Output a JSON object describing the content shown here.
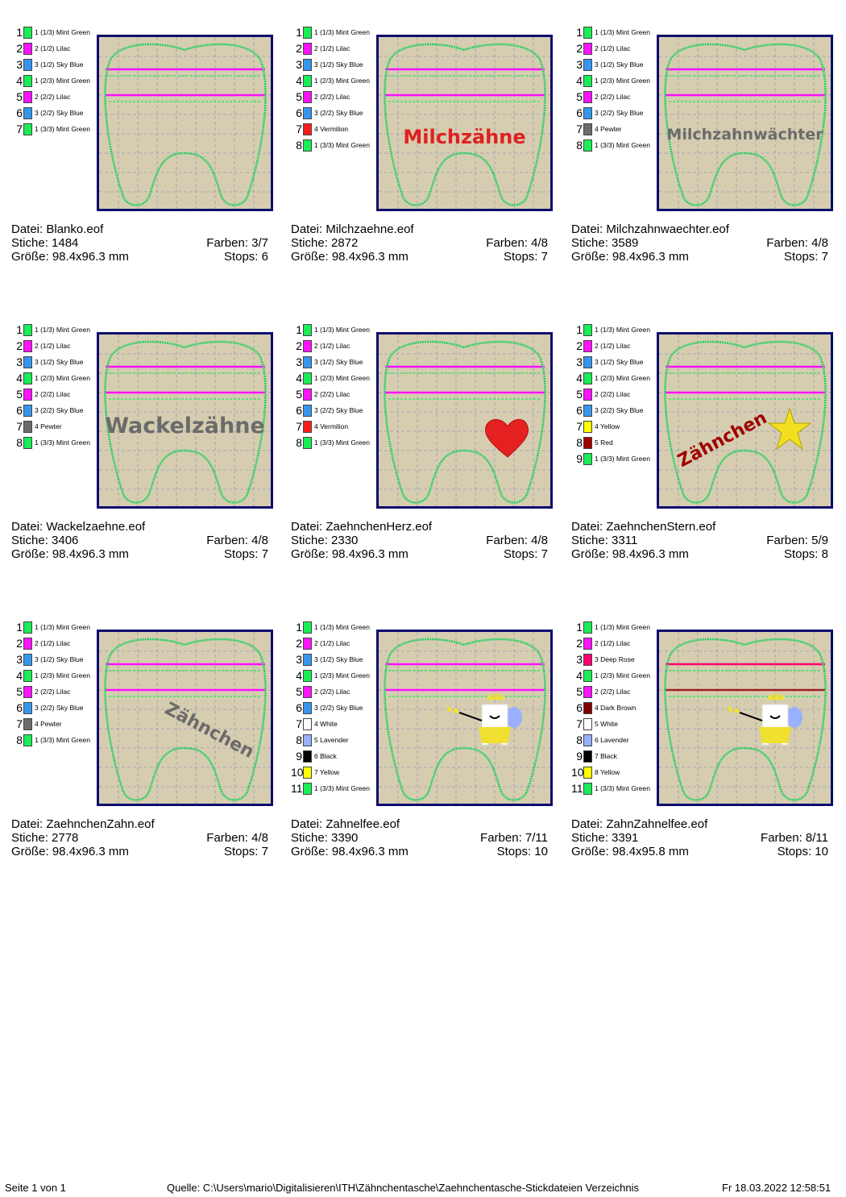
{
  "palette": {
    "Mint Green": "#17ef55",
    "Lilac": "#ff10ff",
    "Sky Blue": "#3596f0",
    "Vermilion": "#ff1a1a",
    "Pewter": "#6b6b6b",
    "Yellow": "#ffff00",
    "Red": "#a00000",
    "White": "#ffffff",
    "Lavender": "#98b0ff",
    "Black": "#000000",
    "Deep Rose": "#ff0070",
    "Dark Brown": "#800000"
  },
  "labels": {
    "file": "Datei:",
    "stitches": "Stiche:",
    "colors": "Farben:",
    "size": "Größe:",
    "stops": "Stops:"
  },
  "designs": [
    {
      "file": "Blanko.eof",
      "stitches": "1484",
      "colors": "3/7",
      "size": "98.4x96.3 mm",
      "stops": "6",
      "design": {
        "type": "none"
      },
      "threads": [
        [
          "1",
          "1 (1/3) Mint Green",
          "Mint Green"
        ],
        [
          "2",
          "2 (1/2) Lilac",
          "Lilac"
        ],
        [
          "3",
          "3 (1/2) Sky Blue",
          "Sky Blue"
        ],
        [
          "4",
          "1 (2/3) Mint Green",
          "Mint Green"
        ],
        [
          "5",
          "2 (2/2) Lilac",
          "Lilac"
        ],
        [
          "6",
          "3 (2/2) Sky Blue",
          "Sky Blue"
        ],
        [
          "7",
          "1 (3/3) Mint Green",
          "Mint Green"
        ]
      ]
    },
    {
      "file": "Milchzaehne.eof",
      "stitches": "2872",
      "colors": "4/8",
      "size": "98.4x96.3 mm",
      "stops": "7",
      "design": {
        "type": "text",
        "text": "Milchzähne",
        "color": "#e02020"
      },
      "threads": [
        [
          "1",
          "1 (1/3) Mint Green",
          "Mint Green"
        ],
        [
          "2",
          "2 (1/2) Lilac",
          "Lilac"
        ],
        [
          "3",
          "3 (1/2) Sky Blue",
          "Sky Blue"
        ],
        [
          "4",
          "1 (2/3) Mint Green",
          "Mint Green"
        ],
        [
          "5",
          "2 (2/2) Lilac",
          "Lilac"
        ],
        [
          "6",
          "3 (2/2) Sky Blue",
          "Sky Blue"
        ],
        [
          "7",
          "4 Vermilion",
          "Vermilion"
        ],
        [
          "8",
          "1 (3/3) Mint Green",
          "Mint Green"
        ]
      ]
    },
    {
      "file": "Milchzahnwaechter.eof",
      "stitches": "3589",
      "colors": "4/8",
      "size": "98.4x96.3 mm",
      "stops": "7",
      "design": {
        "type": "text",
        "text": "Milchzahnwächter",
        "color": "#6b6b6b"
      },
      "threads": [
        [
          "1",
          "1 (1/3) Mint Green",
          "Mint Green"
        ],
        [
          "2",
          "2 (1/2) Lilac",
          "Lilac"
        ],
        [
          "3",
          "3 (1/2) Sky Blue",
          "Sky Blue"
        ],
        [
          "4",
          "1 (2/3) Mint Green",
          "Mint Green"
        ],
        [
          "5",
          "2 (2/2) Lilac",
          "Lilac"
        ],
        [
          "6",
          "3 (2/2) Sky Blue",
          "Sky Blue"
        ],
        [
          "7",
          "4 Pewter",
          "Pewter"
        ],
        [
          "8",
          "1 (3/3) Mint Green",
          "Mint Green"
        ]
      ]
    },
    {
      "file": "Wackelzaehne.eof",
      "stitches": "3406",
      "colors": "4/8",
      "size": "98.4x96.3 mm",
      "stops": "7",
      "design": {
        "type": "text",
        "text": "Wackelzähne",
        "color": "#6b6b6b"
      },
      "threads": [
        [
          "1",
          "1 (1/3) Mint Green",
          "Mint Green"
        ],
        [
          "2",
          "2 (1/2) Lilac",
          "Lilac"
        ],
        [
          "3",
          "3 (1/2) Sky Blue",
          "Sky Blue"
        ],
        [
          "4",
          "1 (2/3) Mint Green",
          "Mint Green"
        ],
        [
          "5",
          "2 (2/2) Lilac",
          "Lilac"
        ],
        [
          "6",
          "3 (2/2) Sky Blue",
          "Sky Blue"
        ],
        [
          "7",
          "4 Pewter",
          "Pewter"
        ],
        [
          "8",
          "1 (3/3) Mint Green",
          "Mint Green"
        ]
      ]
    },
    {
      "file": "ZaehnchenHerz.eof",
      "stitches": "2330",
      "colors": "4/8",
      "size": "98.4x96.3 mm",
      "stops": "7",
      "design": {
        "type": "heart"
      },
      "threads": [
        [
          "1",
          "1 (1/3) Mint Green",
          "Mint Green"
        ],
        [
          "2",
          "2 (1/2) Lilac",
          "Lilac"
        ],
        [
          "3",
          "3 (1/2) Sky Blue",
          "Sky Blue"
        ],
        [
          "4",
          "1 (2/3) Mint Green",
          "Mint Green"
        ],
        [
          "5",
          "2 (2/2) Lilac",
          "Lilac"
        ],
        [
          "6",
          "3 (2/2) Sky Blue",
          "Sky Blue"
        ],
        [
          "7",
          "4 Vermilion",
          "Vermilion"
        ],
        [
          "8",
          "1 (3/3) Mint Green",
          "Mint Green"
        ]
      ]
    },
    {
      "file": "ZaehnchenStern.eof",
      "stitches": "3311",
      "colors": "5/9",
      "size": "98.4x96.3 mm",
      "stops": "8",
      "design": {
        "type": "star",
        "text": "Zähnchen",
        "color": "#a00000"
      },
      "threads": [
        [
          "1",
          "1 (1/3) Mint Green",
          "Mint Green"
        ],
        [
          "2",
          "2 (1/2) Lilac",
          "Lilac"
        ],
        [
          "3",
          "3 (1/2) Sky Blue",
          "Sky Blue"
        ],
        [
          "4",
          "1 (2/3) Mint Green",
          "Mint Green"
        ],
        [
          "5",
          "2 (2/2) Lilac",
          "Lilac"
        ],
        [
          "6",
          "3 (2/2) Sky Blue",
          "Sky Blue"
        ],
        [
          "7",
          "4 Yellow",
          "Yellow"
        ],
        [
          "8",
          "5 Red",
          "Red"
        ],
        [
          "9",
          "1 (3/3) Mint Green",
          "Mint Green"
        ]
      ]
    },
    {
      "file": "ZaehnchenZahn.eof",
      "stitches": "2778",
      "colors": "4/8",
      "size": "98.4x96.3 mm",
      "stops": "7",
      "design": {
        "type": "slant",
        "text": "Zähnchen",
        "color": "#6b6b6b"
      },
      "threads": [
        [
          "1",
          "1 (1/3) Mint Green",
          "Mint Green"
        ],
        [
          "2",
          "2 (1/2) Lilac",
          "Lilac"
        ],
        [
          "3",
          "3 (1/2) Sky Blue",
          "Sky Blue"
        ],
        [
          "4",
          "1 (2/3) Mint Green",
          "Mint Green"
        ],
        [
          "5",
          "2 (2/2) Lilac",
          "Lilac"
        ],
        [
          "6",
          "3 (2/2) Sky Blue",
          "Sky Blue"
        ],
        [
          "7",
          "4 Pewter",
          "Pewter"
        ],
        [
          "8",
          "1 (3/3) Mint Green",
          "Mint Green"
        ]
      ]
    },
    {
      "file": "Zahnelfee.eof",
      "stitches": "3390",
      "colors": "7/11",
      "size": "98.4x96.3 mm",
      "stops": "10",
      "design": {
        "type": "fairy"
      },
      "threads": [
        [
          "1",
          "1 (1/3) Mint Green",
          "Mint Green"
        ],
        [
          "2",
          "2 (1/2) Lilac",
          "Lilac"
        ],
        [
          "3",
          "3 (1/2) Sky Blue",
          "Sky Blue"
        ],
        [
          "4",
          "1 (2/3) Mint Green",
          "Mint Green"
        ],
        [
          "5",
          "2 (2/2) Lilac",
          "Lilac"
        ],
        [
          "6",
          "3 (2/2) Sky Blue",
          "Sky Blue"
        ],
        [
          "7",
          "4 White",
          "White"
        ],
        [
          "8",
          "5 Lavender",
          "Lavender"
        ],
        [
          "9",
          "6 Black",
          "Black"
        ],
        [
          "10",
          "7 Yellow",
          "Yellow"
        ],
        [
          "11",
          "1 (3/3) Mint Green",
          "Mint Green"
        ]
      ]
    },
    {
      "file": "ZahnZahnelfee.eof",
      "stitches": "3391",
      "colors": "8/11",
      "size": "98.4x95.8 mm",
      "stops": "10",
      "design": {
        "type": "fairy"
      },
      "threads": [
        [
          "1",
          "1 (1/3) Mint Green",
          "Mint Green"
        ],
        [
          "2",
          "2 (1/2) Lilac",
          "Lilac"
        ],
        [
          "3",
          "3 Deep Rose",
          "Deep Rose"
        ],
        [
          "4",
          "1 (2/3) Mint Green",
          "Mint Green"
        ],
        [
          "5",
          "2 (2/2) Lilac",
          "Lilac"
        ],
        [
          "6",
          "4 Dark Brown",
          "Dark Brown"
        ],
        [
          "7",
          "5 White",
          "White"
        ],
        [
          "8",
          "6 Lavender",
          "Lavender"
        ],
        [
          "9",
          "7 Black",
          "Black"
        ],
        [
          "10",
          "8 Yellow",
          "Yellow"
        ],
        [
          "11",
          "1 (3/3) Mint Green",
          "Mint Green"
        ]
      ]
    }
  ],
  "footer": {
    "page": "Seite 1 von 1",
    "source": "Quelle: C:\\Users\\mario\\Digitalisieren\\ITH\\Zähnchentasche\\Zaehnchentasche-Stickdateien Verzeichnis",
    "date": "Fr 18.03.2022 12:58:51"
  }
}
